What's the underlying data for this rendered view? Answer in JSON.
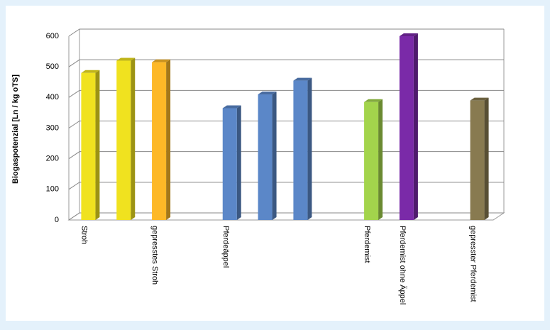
{
  "chart_data": {
    "type": "bar3d",
    "y_label": "Biogaspotenzial [Ln / kg oTS]",
    "categories": [
      "Stroh",
      null,
      "gepresstes Stroh",
      null,
      "Pferdeäppel",
      null,
      null,
      null,
      "Pferdemist",
      "Pferdemist ohne Äppel",
      null,
      "gepresster Pferdemist"
    ],
    "values": [
      480,
      520,
      515,
      null,
      365,
      410,
      455,
      null,
      385,
      600,
      null,
      390
    ],
    "colors": [
      "#f0e21f",
      "#f0e21f",
      "#fdb827",
      null,
      "#5b87c8",
      "#5b87c8",
      "#5b87c8",
      null,
      "#a3d44c",
      "#7a2aa8",
      null,
      "#887a50"
    ],
    "ylim": [
      0,
      600
    ],
    "yticks": [
      0,
      100,
      200,
      300,
      400,
      500,
      600
    ],
    "grid": true
  }
}
